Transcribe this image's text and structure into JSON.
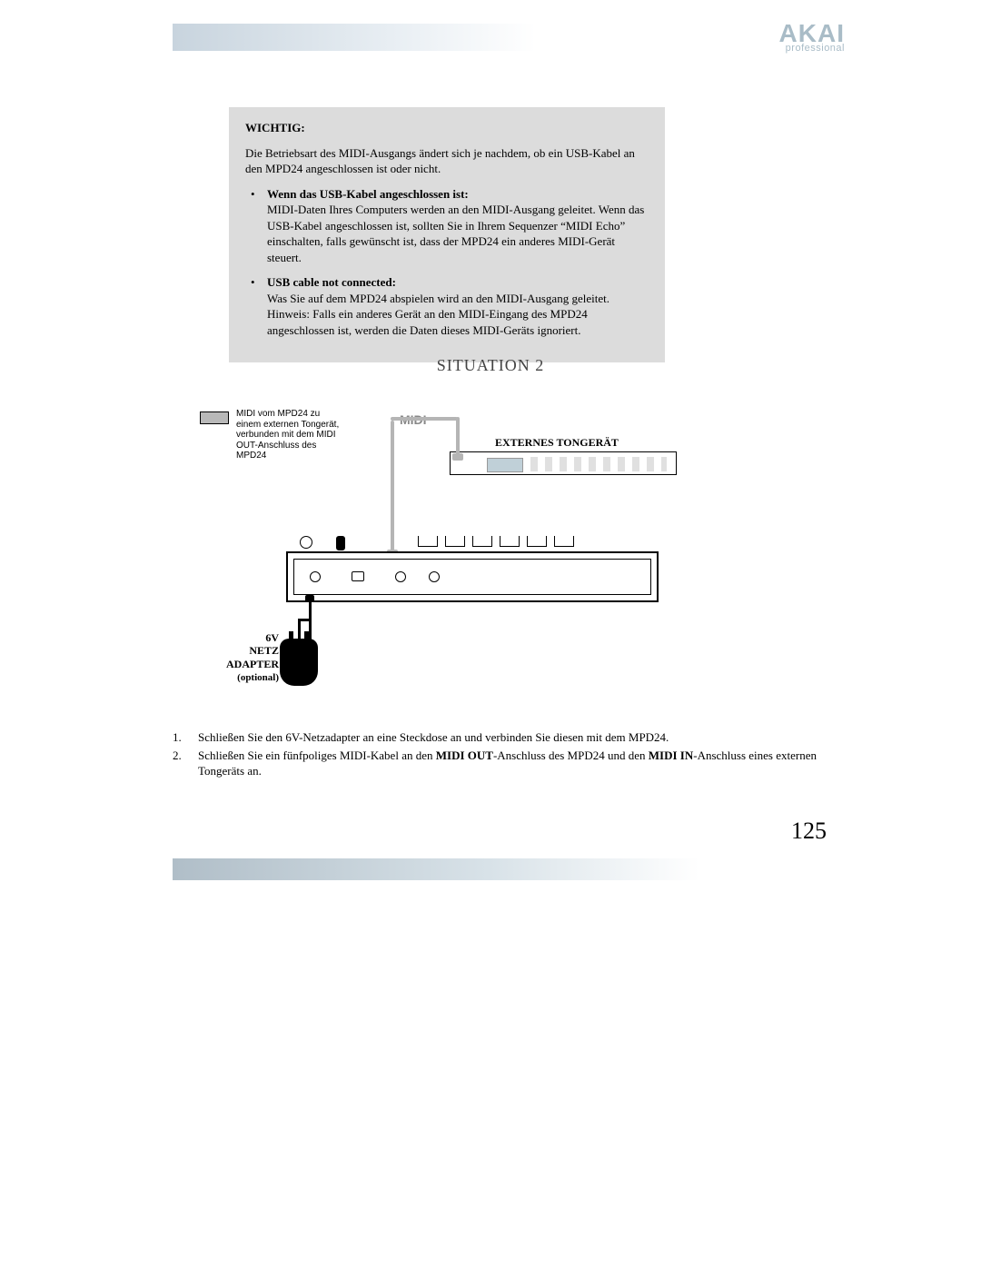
{
  "logo": {
    "main": "AKAI",
    "sub": "professional"
  },
  "box": {
    "title": "WICHTIG:",
    "intro": "Die Betriebsart des MIDI-Ausgangs ändert sich je nachdem, ob ein USB-Kabel an den MPD24 angeschlossen ist oder nicht.",
    "b1_title": "Wenn das USB-Kabel angeschlossen ist:",
    "b1_body": "MIDI-Daten Ihres Computers werden an den MIDI-Ausgang geleitet. Wenn das USB-Kabel angeschlossen ist, sollten Sie in Ihrem Sequenzer “MIDI Echo” einschalten, falls gewünscht ist, dass der MPD24 ein anderes MIDI-Gerät steuert.",
    "b2_title": "USB cable not connected:",
    "b2_body": "Was Sie auf dem MPD24 abspielen wird an den MIDI-Ausgang geleitet. Hinweis: Falls ein anderes Gerät an den MIDI-Eingang des MPD24 angeschlossen ist, werden die Daten dieses MIDI-Geräts ignoriert."
  },
  "situation_title": "SITUATION 2",
  "diagram": {
    "legend": "MIDI vom MPD24 zu einem externen Tongerät, verbunden mit dem MIDI OUT-Anschluss des MPD24",
    "midi_label": "MIDI",
    "ext_label": "EXTERNES TONGERÄT",
    "adapter_l1": "6V",
    "adapter_l2": "NETZ",
    "adapter_l3": "ADAPTER",
    "adapter_l4": "(optional)",
    "colors": {
      "legend_fill": "#b9b9b9",
      "cable_midi": "#b5b5b5",
      "cable_power": "#000000",
      "device_border": "#000000"
    }
  },
  "instructions": {
    "i1_num": "1.",
    "i1": "Schließen Sie den 6V-Netzadapter an eine Steckdose an und verbinden Sie diesen mit dem MPD24.",
    "i2_num": "2.",
    "i2_a": "Schließen Sie ein fünfpoliges MIDI-Kabel an den ",
    "i2_b1": "MIDI OUT",
    "i2_c": "-Anschluss des MPD24 und den ",
    "i2_b2": "MIDI IN",
    "i2_d": "-Anschluss eines externen Tongeräts an."
  },
  "page_number": "125"
}
